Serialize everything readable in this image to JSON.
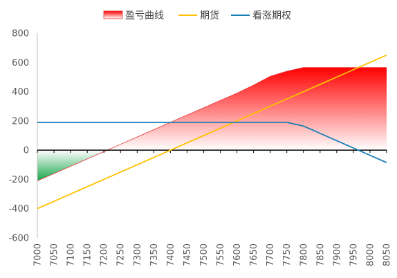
{
  "chart_data": {
    "type": "area",
    "title": "",
    "xlabel": "",
    "ylabel": "",
    "ylim": [
      -600,
      800
    ],
    "yticks": [
      -600,
      -400,
      -200,
      0,
      200,
      400,
      600,
      800
    ],
    "x": [
      7000,
      7050,
      7100,
      7150,
      7200,
      7250,
      7300,
      7350,
      7400,
      7450,
      7500,
      7550,
      7600,
      7650,
      7700,
      7750,
      7800,
      7850,
      7900,
      7950,
      8000,
      8050
    ],
    "grid": false,
    "legend_position": "top",
    "series": [
      {
        "name": "盈亏曲线",
        "kind": "area",
        "colors": {
          "positive": "#ff0000",
          "negative": "#19a64a",
          "line": "#e83030"
        },
        "values": [
          -210,
          -160,
          -110,
          -60,
          -10,
          40,
          90,
          140,
          190,
          240,
          290,
          340,
          390,
          445,
          505,
          540,
          565,
          565,
          565,
          565,
          565,
          565
        ]
      },
      {
        "name": "期货",
        "kind": "line",
        "color": "#ffc000",
        "values": [
          -400,
          -350,
          -300,
          -250,
          -200,
          -150,
          -100,
          -50,
          0,
          50,
          100,
          150,
          200,
          250,
          300,
          350,
          400,
          450,
          500,
          550,
          600,
          650
        ]
      },
      {
        "name": "看涨期权",
        "kind": "line",
        "color": "#1a7fb8",
        "values": [
          190,
          190,
          190,
          190,
          190,
          190,
          190,
          190,
          190,
          190,
          190,
          190,
          190,
          190,
          190,
          190,
          165,
          115,
          65,
          15,
          -35,
          -85
        ]
      }
    ]
  }
}
